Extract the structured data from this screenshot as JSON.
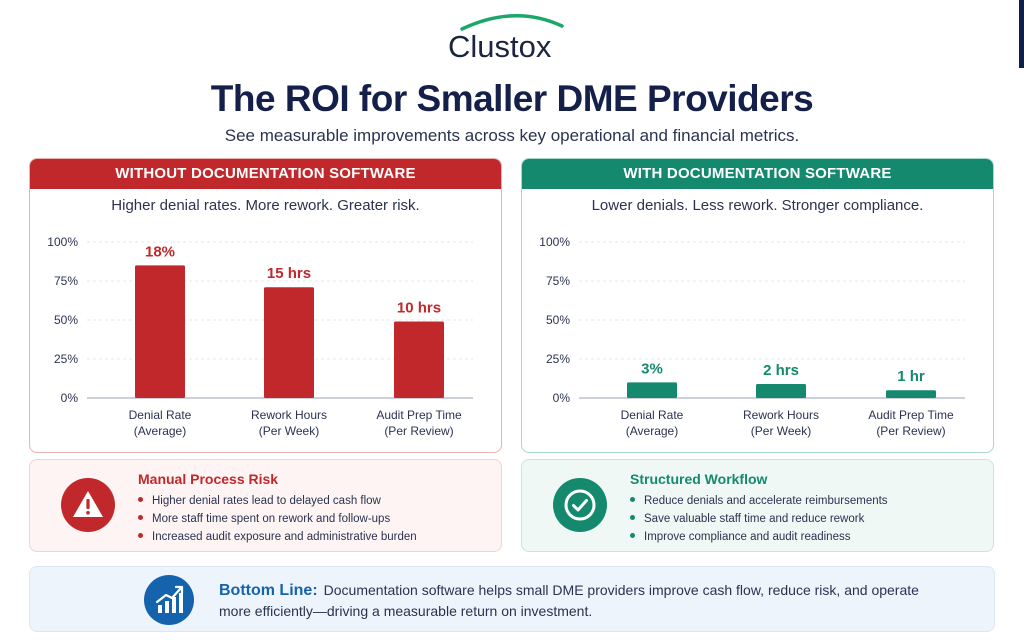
{
  "brand": {
    "name": "Clustox",
    "colors": {
      "navy": "#14204a",
      "red": "#c1282b",
      "green": "#14896d",
      "blue": "#1663ad"
    }
  },
  "title": "The ROI for Smaller DME Providers",
  "subtitle": "See measurable improvements across key operational and financial metrics.",
  "panels": {
    "without": {
      "header": "WITHOUT DOCUMENTATION SOFTWARE",
      "tagline": "Higher denial rates. More rework. Greater risk."
    },
    "with": {
      "header": "WITH DOCUMENTATION SOFTWARE",
      "tagline": "Lower denials. Less rework. Stronger compliance."
    }
  },
  "chart_data": [
    {
      "type": "bar",
      "yticks": [
        "100%",
        "75%",
        "50%",
        "25%",
        "0%"
      ],
      "ylim": [
        0,
        100
      ],
      "grid": true,
      "color": "#c1282b",
      "categories": [
        [
          "Denial Rate",
          "(Average)"
        ],
        [
          "Rework Hours",
          "(Per Week)"
        ],
        [
          "Audit Prep Time",
          "(Per Review)"
        ]
      ],
      "values": [
        85,
        71,
        49
      ],
      "labels": [
        "18%",
        "15 hrs",
        "10 hrs"
      ]
    },
    {
      "type": "bar",
      "yticks": [
        "100%",
        "75%",
        "50%",
        "25%",
        "0%"
      ],
      "ylim": [
        0,
        100
      ],
      "grid": true,
      "color": "#14896d",
      "categories": [
        [
          "Denial Rate",
          "(Average)"
        ],
        [
          "Rework Hours",
          "(Per Week)"
        ],
        [
          "Audit Prep Time",
          "(Per Review)"
        ]
      ],
      "values": [
        10,
        9,
        5
      ],
      "labels": [
        "3%",
        "2 hrs",
        "1 hr"
      ]
    }
  ],
  "cards": {
    "risk": {
      "icon": "warning-icon",
      "title": "Manual Process Risk",
      "items": [
        "Higher denial rates lead to delayed cash flow",
        "More staff time spent on rework and follow-ups",
        "Increased audit exposure and administrative burden"
      ]
    },
    "workflow": {
      "icon": "check-circle-icon",
      "title": "Structured Workflow",
      "items": [
        "Reduce denials and accelerate reimbursements",
        "Save valuable staff time and reduce rework",
        "Improve compliance and audit readiness"
      ]
    }
  },
  "bottom": {
    "icon": "growth-chart-icon",
    "label": "Bottom Line:",
    "text": "Documentation software helps small DME providers improve cash flow, reduce risk, and operate more efficiently—driving a measurable return on investment."
  }
}
